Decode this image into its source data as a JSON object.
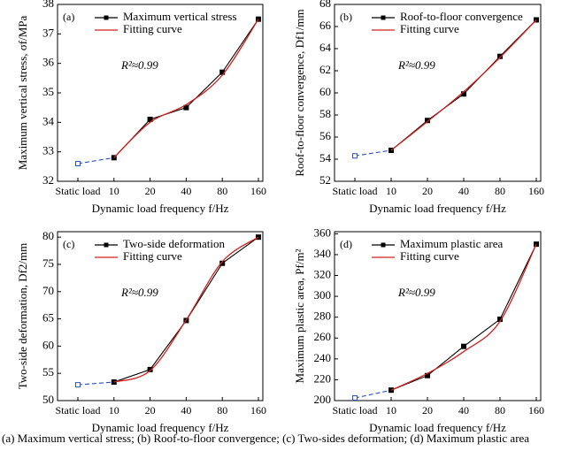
{
  "chart_data": [
    {
      "type": "line",
      "panel_label": "(a)",
      "annotation": "R²≈0.99",
      "xlabel": "Dynamic load frequency f/Hz",
      "ylabel": "Maximum vertical stress, σf/MPa",
      "categories": [
        "Static load",
        "10",
        "20",
        "40",
        "80",
        "160"
      ],
      "ylim": [
        32,
        38
      ],
      "yticks": [
        32,
        33,
        34,
        35,
        36,
        37,
        38
      ],
      "legend": "upper left",
      "series": [
        {
          "color": "#2a4fc0",
          "dashed": true,
          "marker": "open-square",
          "values": [
            32.6,
            32.8,
            null,
            null,
            null,
            null
          ]
        },
        {
          "name": "Maximum vertical stress",
          "color": "#000000",
          "marker": "square",
          "values": [
            null,
            32.8,
            34.1,
            34.5,
            35.7,
            37.5
          ]
        },
        {
          "name": "Fitting curve",
          "color": "#d02020",
          "smooth": true,
          "values": [
            null,
            32.8,
            34.0,
            34.6,
            35.6,
            37.5
          ]
        }
      ]
    },
    {
      "type": "line",
      "panel_label": "(b)",
      "annotation": "R²≈0.99",
      "xlabel": "Dynamic load frequency f/Hz",
      "ylabel": "Roof-to-floor convergence, Df1/mm",
      "categories": [
        "Static load",
        "10",
        "20",
        "40",
        "80",
        "160"
      ],
      "ylim": [
        52,
        68
      ],
      "yticks": [
        52,
        54,
        56,
        58,
        60,
        62,
        64,
        66,
        68
      ],
      "legend": "upper left",
      "series": [
        {
          "color": "#2a4fc0",
          "dashed": true,
          "marker": "open-square",
          "values": [
            54.3,
            54.8,
            null,
            null,
            null,
            null
          ]
        },
        {
          "name": "Roof-to-floor convergence",
          "color": "#000000",
          "marker": "square",
          "values": [
            null,
            54.8,
            57.5,
            59.9,
            63.3,
            66.6
          ]
        },
        {
          "name": "Fitting curve",
          "color": "#d02020",
          "smooth": true,
          "values": [
            null,
            54.8,
            57.4,
            60.1,
            63.2,
            66.6
          ]
        }
      ]
    },
    {
      "type": "line",
      "panel_label": "(c)",
      "annotation": "R²≈0.99",
      "xlabel": "Dynamic load frequency f/Hz",
      "ylabel": "Two-side deformation, Df2/mm",
      "categories": [
        "Static load",
        "10",
        "20",
        "40",
        "80",
        "160"
      ],
      "ylim": [
        50,
        81
      ],
      "yticks": [
        50,
        55,
        60,
        65,
        70,
        75,
        80
      ],
      "legend": "upper left",
      "series": [
        {
          "color": "#2a4fc0",
          "dashed": true,
          "marker": "open-square",
          "values": [
            52.9,
            53.4,
            null,
            null,
            null,
            null
          ]
        },
        {
          "name": "Two-side deformation",
          "color": "#000000",
          "marker": "square",
          "values": [
            null,
            53.4,
            55.7,
            64.7,
            75.2,
            80.0
          ]
        },
        {
          "name": "Fitting curve",
          "color": "#d02020",
          "smooth": true,
          "values": [
            null,
            53.4,
            55.5,
            64.8,
            75.5,
            80.0
          ]
        }
      ]
    },
    {
      "type": "line",
      "panel_label": "(d)",
      "annotation": "R²≈0.99",
      "xlabel": "Dynamic load frequency f/Hz",
      "ylabel": "Maximum plastic area, Pf/m²",
      "categories": [
        "Static load",
        "10",
        "20",
        "40",
        "80",
        "160"
      ],
      "ylim": [
        200,
        362
      ],
      "yticks": [
        200,
        220,
        240,
        260,
        280,
        300,
        320,
        340,
        360
      ],
      "legend": "upper left",
      "series": [
        {
          "color": "#2a4fc0",
          "dashed": true,
          "marker": "open-square",
          "values": [
            202.5,
            210,
            null,
            null,
            null,
            null
          ]
        },
        {
          "name": "Maximum plastic area",
          "color": "#000000",
          "marker": "square",
          "values": [
            null,
            210,
            224,
            252,
            278,
            350
          ]
        },
        {
          "name": "Fitting curve",
          "color": "#d02020",
          "smooth": true,
          "values": [
            null,
            210,
            226,
            247,
            276,
            350
          ]
        }
      ]
    }
  ],
  "caption": "(a) Maximum vertical stress; (b) Roof-to-floor convergence; (c) Two-sides deformation; (d) Maximum plastic area"
}
